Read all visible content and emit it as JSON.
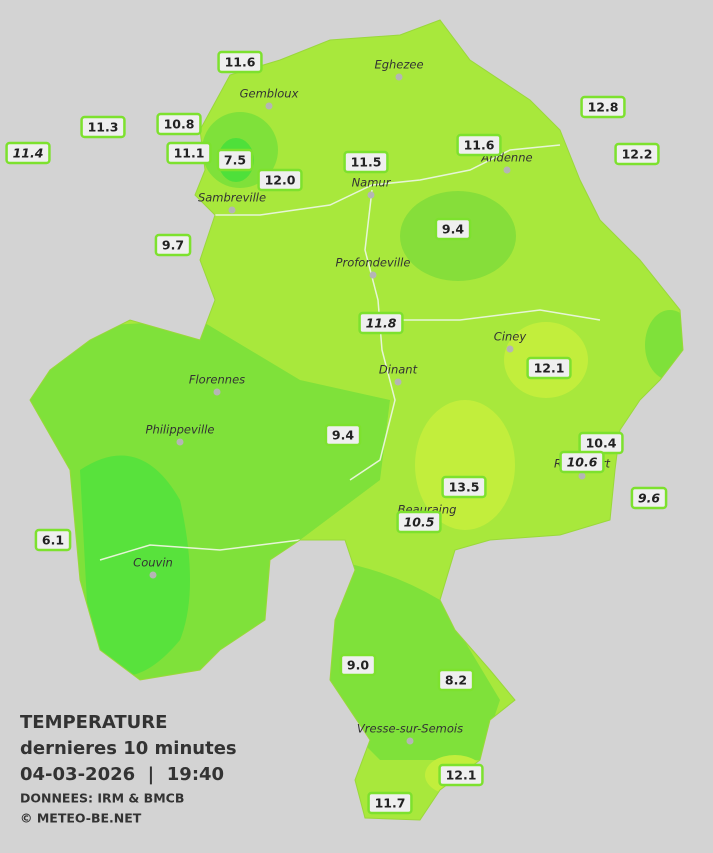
{
  "legend": {
    "title": "TEMPERATURE",
    "subtitle": "dernieres 10 minutes",
    "datetime": "04-03-2026  |  19:40",
    "source": "DONNEES: IRM & BMCB",
    "copyright": "© METEO-BE.NET"
  },
  "cities": [
    "Eghezee",
    "Gembloux",
    "Andenne",
    "Namur",
    "Sambreville",
    "Profondeville",
    "Ciney",
    "Dinant",
    "Florennes",
    "Philippeville",
    "Couvin",
    "Vresse-sur-Semois",
    "Beauraing",
    "Rochefort"
  ],
  "stations": [
    {
      "label": "11.6"
    },
    {
      "label": "11.3"
    },
    {
      "label": "11.4",
      "italic": true
    },
    {
      "label": "10.8"
    },
    {
      "label": "11.1"
    },
    {
      "label": "7.5"
    },
    {
      "label": "12.0"
    },
    {
      "label": "9.7"
    },
    {
      "label": "11.5"
    },
    {
      "label": "11.6"
    },
    {
      "label": "12.8"
    },
    {
      "label": "12.2"
    },
    {
      "label": "9.4"
    },
    {
      "label": "11.8",
      "italic": true
    },
    {
      "label": "12.1"
    },
    {
      "label": "9.4"
    },
    {
      "label": "10.4"
    },
    {
      "label": "10.6",
      "italic": true
    },
    {
      "label": "13.5"
    },
    {
      "label": "10.5",
      "italic": true
    },
    {
      "label": "9.6",
      "italic": true
    },
    {
      "label": "6.1"
    },
    {
      "label": "9.0"
    },
    {
      "label": "8.2"
    },
    {
      "label": "12.1"
    },
    {
      "label": "11.7"
    }
  ]
}
